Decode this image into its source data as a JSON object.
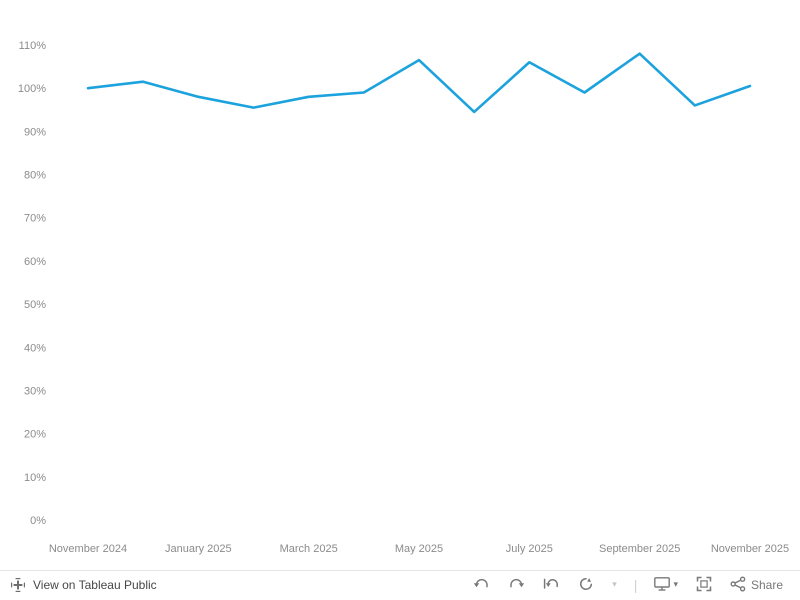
{
  "chart_data": {
    "type": "line",
    "title": "",
    "x": [
      "November 2024",
      "December 2024",
      "January 2025",
      "February 2025",
      "March 2025",
      "April 2025",
      "May 2025",
      "June 2025",
      "July 2025",
      "August 2025",
      "September 2025",
      "October 2025",
      "November 2025"
    ],
    "values": [
      100,
      101.5,
      98,
      95.5,
      98,
      99,
      106.5,
      94.5,
      106,
      99,
      108,
      96,
      100.5
    ],
    "x_tick_labels": [
      "November 2024",
      "January 2025",
      "March 2025",
      "May 2025",
      "July 2025",
      "September 2025",
      "November 2025"
    ],
    "x_tick_indices": [
      0,
      2,
      4,
      6,
      8,
      10,
      12
    ],
    "y_ticks": [
      0,
      10,
      20,
      30,
      40,
      50,
      60,
      70,
      80,
      90,
      100,
      110
    ],
    "y_tick_suffix": "%",
    "ylim": [
      0,
      110
    ],
    "grid": "off",
    "legend": "none",
    "line_color": "#1ca2dd",
    "axis_text_color": "#8b8b8b"
  },
  "footer": {
    "view_on_tableau": "View on Tableau Public",
    "share": "Share",
    "icons": [
      "tableau-logo",
      "undo",
      "redo",
      "revert",
      "refresh",
      "chevron-down",
      "download",
      "fullscreen",
      "share"
    ]
  }
}
